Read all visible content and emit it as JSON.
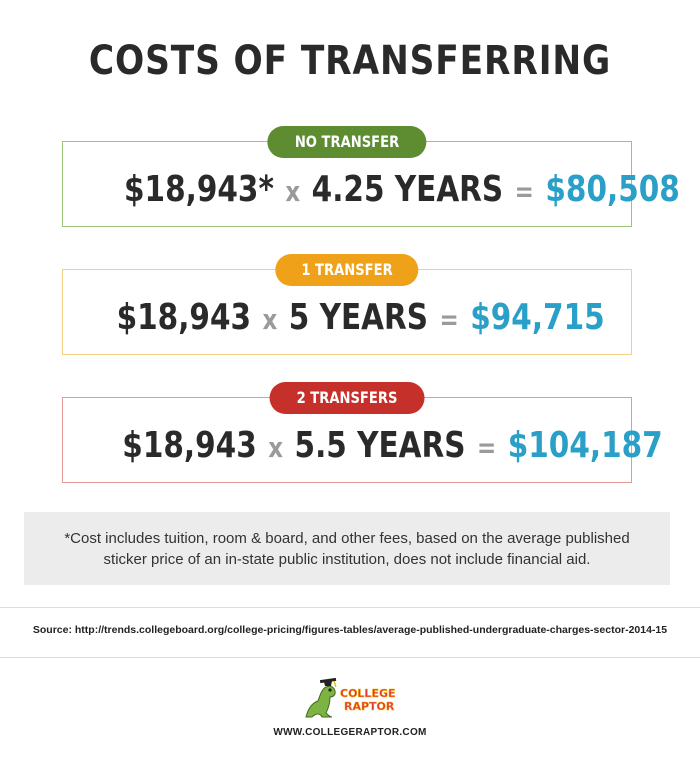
{
  "title": "COSTS OF TRANSFERRING",
  "scenarios": [
    {
      "badge": "NO TRANSFER",
      "cost": "$18,943*",
      "times": "x",
      "years": "4.25 YEARS",
      "equals": "=",
      "total": "$80,508"
    },
    {
      "badge": "1 TRANSFER",
      "cost": "$18,943",
      "times": "x",
      "years": "5 YEARS",
      "equals": "=",
      "total": "$94,715"
    },
    {
      "badge": "2 TRANSFERS",
      "cost": "$18,943",
      "times": "x",
      "years": "5.5 YEARS",
      "equals": "=",
      "total": "$104,187"
    }
  ],
  "footnote": "*Cost includes tuition, room & board, and other fees, based on the average published sticker price of an in-state public institution, does not include financial aid.",
  "source": "Source: http://trends.collegeboard.org/college-pricing/figures-tables/average-published-undergraduate-charges-sector-2014-15",
  "logo": {
    "line1": "COLLEGE",
    "line2": "RAPTOR",
    "icon": "raptor-mascot-icon"
  },
  "website": "WWW.COLLEGERAPTOR.COM",
  "colors": {
    "no_transfer": "#5e8c31",
    "one_transfer": "#efa119",
    "two_transfers": "#c6302a",
    "total": "#2aa0c8"
  }
}
